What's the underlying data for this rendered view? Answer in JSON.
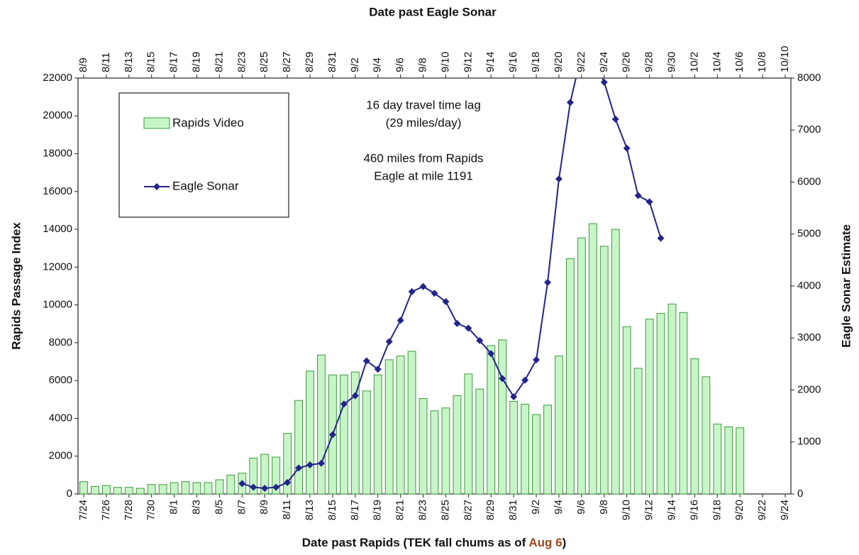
{
  "chart_data": {
    "type": "bar_line",
    "title": "Date past Eagle Sonar",
    "xlabel_parts": [
      {
        "text": "Date past Rapids (TEK fall chums as of ",
        "color": "#111111"
      },
      {
        "text": "Aug 6",
        "color": "#a0441a"
      },
      {
        "text": ")",
        "color": "#111111"
      }
    ],
    "ylabel": "Rapids Passage Index",
    "y2label": "Eagle Sonar Estimate",
    "annotations": [
      "16 day travel time lag",
      "(29 miles/day)",
      "460 miles from Rapids",
      "Eagle at mile 1191"
    ],
    "categories": [
      "7/24",
      null,
      "7/26",
      null,
      "7/28",
      null,
      "7/30",
      null,
      "8/1",
      null,
      "8/3",
      null,
      "8/5",
      null,
      "8/7",
      null,
      "8/9",
      null,
      "8/11",
      null,
      "8/13",
      null,
      "8/15",
      null,
      "8/17",
      null,
      "8/19",
      null,
      "8/21",
      null,
      "8/23",
      null,
      "8/25",
      null,
      "8/27",
      null,
      "8/29",
      null,
      "8/31",
      null,
      "9/2",
      null,
      "9/4",
      null,
      "9/6",
      null,
      "9/8",
      null,
      "9/10",
      null,
      "9/12",
      null,
      "9/14",
      null,
      "9/16",
      null,
      "9/18",
      null,
      "9/20",
      null,
      "9/22",
      null,
      "9/24"
    ],
    "top_categories": [
      "8/9",
      null,
      "8/11",
      null,
      "8/13",
      null,
      "8/15",
      null,
      "8/17",
      null,
      "8/19",
      null,
      "8/21",
      null,
      "8/23",
      null,
      "8/25",
      null,
      "8/27",
      null,
      "8/29",
      null,
      "8/31",
      null,
      "9/2",
      null,
      "9/4",
      null,
      "9/6",
      null,
      "9/8",
      null,
      "9/10",
      null,
      "9/12",
      null,
      "9/14",
      null,
      "9/16",
      null,
      "9/18",
      null,
      "9/20",
      null,
      "9/22",
      null,
      "9/24",
      null,
      "9/26",
      null,
      "9/28",
      null,
      "9/30",
      null,
      "10/2",
      null,
      "10/4",
      null,
      "10/6",
      null,
      "10/8",
      null,
      "10/10"
    ],
    "series": [
      {
        "name": "Rapids Video",
        "color": "#c8f5c8",
        "edge": "#3a9a3a",
        "axis": "y",
        "values": [
          650,
          400,
          450,
          350,
          350,
          300,
          500,
          500,
          600,
          650,
          600,
          600,
          750,
          1000,
          1100,
          1900,
          2100,
          1950,
          3200,
          4950,
          6500,
          7350,
          6300,
          6300,
          6450,
          5450,
          6300,
          7100,
          7300,
          7550,
          5050,
          4400,
          4550,
          5200,
          6350,
          5550,
          7850,
          8150,
          4900,
          4750,
          4200,
          4700,
          7300,
          12450,
          13550,
          14300,
          13100,
          14000,
          8850,
          6650,
          9250,
          9550,
          10050,
          9600,
          7150,
          6200,
          3700,
          3550,
          3500,
          null,
          null,
          null,
          null
        ]
      },
      {
        "name": "Eagle Sonar",
        "color": "#23238c",
        "axis": "y2",
        "values": [
          null,
          null,
          null,
          null,
          null,
          null,
          null,
          null,
          null,
          null,
          null,
          null,
          null,
          null,
          200,
          130,
          110,
          130,
          220,
          500,
          560,
          590,
          1140,
          1730,
          1890,
          2560,
          2400,
          2930,
          3340,
          3890,
          3990,
          3860,
          3700,
          3280,
          3190,
          2950,
          2700,
          2220,
          1870,
          2190,
          2580,
          4070,
          6060,
          7530,
          8470,
          8400,
          7920,
          7210,
          6650,
          5740,
          5620,
          4920,
          null,
          null,
          null,
          null,
          null,
          null,
          null,
          null,
          null,
          null,
          null
        ]
      }
    ],
    "ylim": [
      0,
      22000
    ],
    "yticks": [
      0,
      2000,
      4000,
      6000,
      8000,
      10000,
      12000,
      14000,
      16000,
      18000,
      20000,
      22000
    ],
    "y2lim": [
      0,
      8000
    ],
    "y2ticks": [
      0,
      1000,
      2000,
      3000,
      4000,
      5000,
      6000,
      7000,
      8000
    ],
    "grid": false
  }
}
